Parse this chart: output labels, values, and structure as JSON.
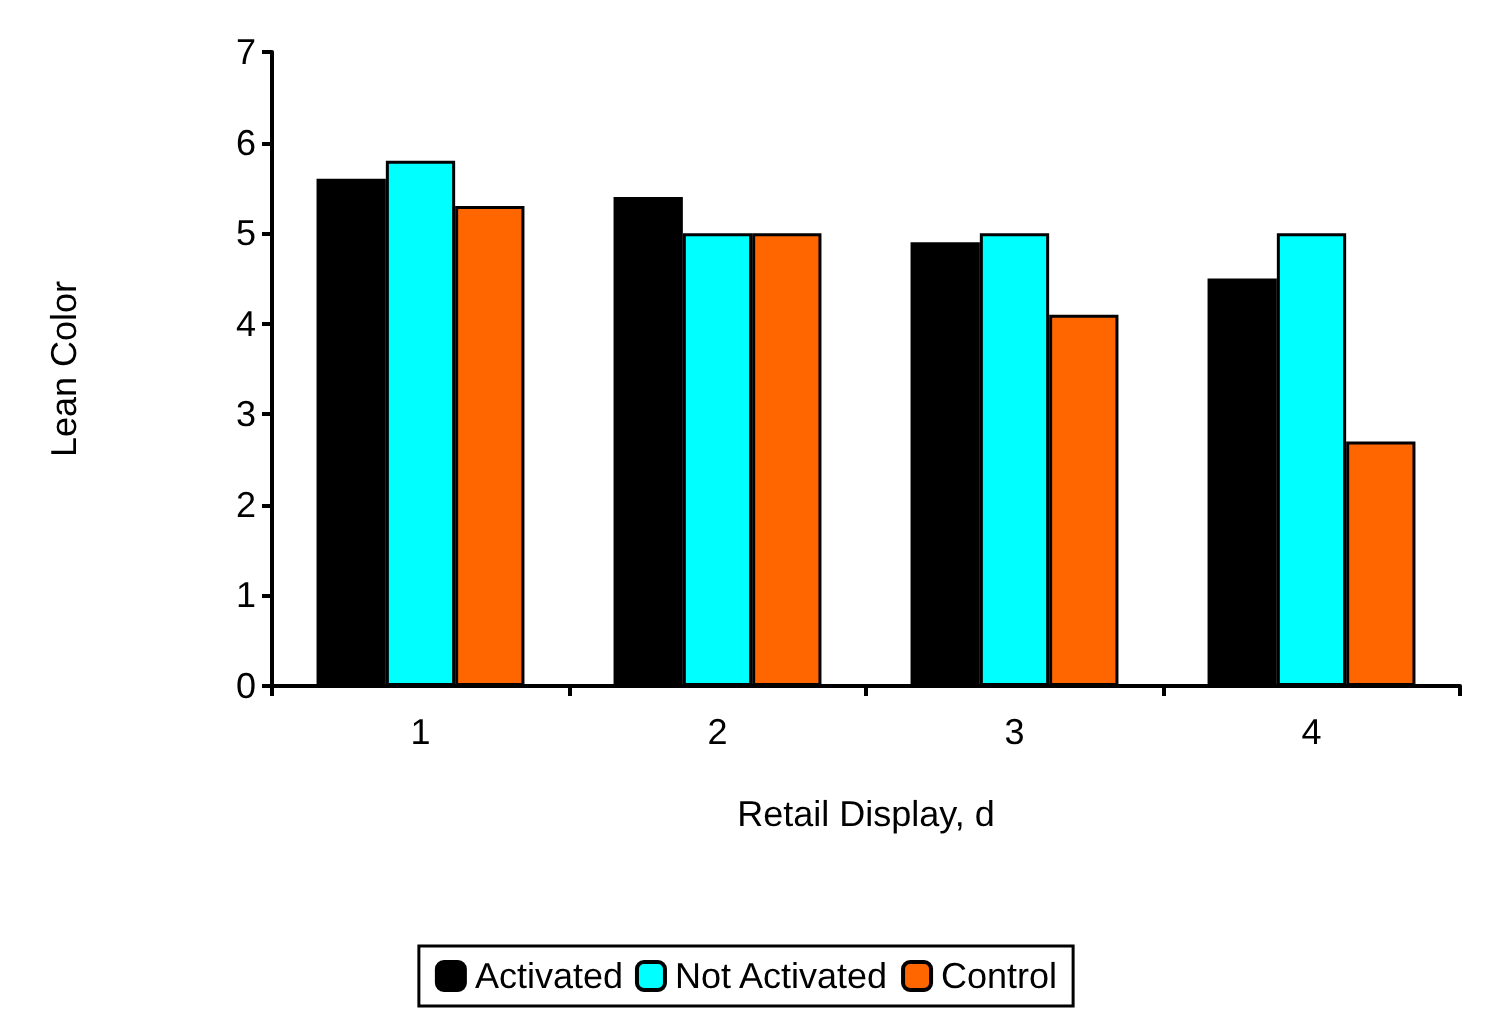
{
  "chart_data": {
    "type": "bar",
    "xlabel": "Retail Display, d",
    "ylabel": "Lean Color",
    "categories": [
      "1",
      "2",
      "3",
      "4"
    ],
    "series": [
      {
        "name": "Activated",
        "color": "#000000",
        "values": [
          5.6,
          5.4,
          4.9,
          4.5
        ]
      },
      {
        "name": "Not Activated",
        "color": "#00ffff",
        "values": [
          5.8,
          5.0,
          5.0,
          5.0
        ]
      },
      {
        "name": "Control",
        "color": "#ff6600",
        "values": [
          5.3,
          5.0,
          4.1,
          2.7
        ]
      }
    ],
    "ylim": [
      0,
      7
    ],
    "yticks": [
      0,
      1,
      2,
      3,
      4,
      5,
      6,
      7
    ],
    "grid": false,
    "legend": "bottom"
  }
}
